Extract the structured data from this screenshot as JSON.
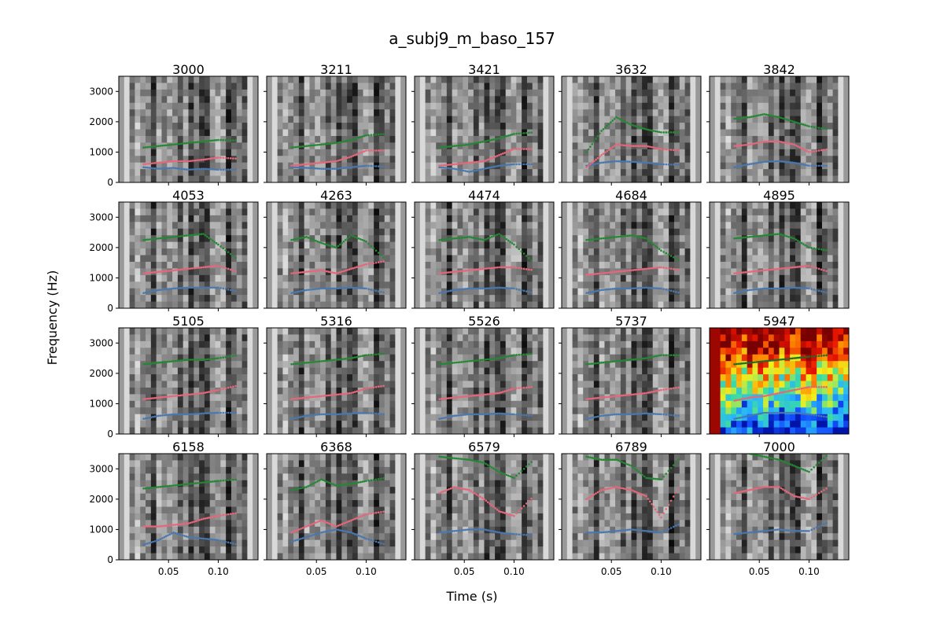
{
  "figure": {
    "title": "a_subj9_m_baso_157",
    "xlabel": "Time (s)",
    "ylabel": "Frequency (Hz)"
  },
  "chart_data": {
    "type": "scatter",
    "description_kind": "small-multiples spectrogram grid with formant tracks",
    "title": "a_subj9_m_baso_157",
    "xlabel": "Time (s)",
    "ylabel": "Frequency (Hz)",
    "xlim": [
      0.0,
      0.14
    ],
    "ylim": [
      0,
      3500
    ],
    "xticks": [
      0.05,
      0.1
    ],
    "xtick_labels": [
      "0.05",
      "0.10"
    ],
    "yticks": [
      0,
      1000,
      2000,
      3000
    ],
    "ytick_labels": [
      "0",
      "1000",
      "2000",
      "3000"
    ],
    "grid": false,
    "rows": 4,
    "cols": 5,
    "series_colors": {
      "F1": "#4878b0",
      "F2": "#e8667a",
      "F3": "#228833"
    },
    "highlight_colormap": "jet",
    "time_points": [
      0.025,
      0.04,
      0.055,
      0.07,
      0.085,
      0.1,
      0.12
    ],
    "panels": [
      {
        "label": "3000",
        "highlight": false,
        "F1": [
          500,
          450,
          480,
          420,
          450,
          420,
          430
        ],
        "F2": [
          600,
          650,
          700,
          700,
          750,
          820,
          780
        ],
        "F3": [
          1150,
          1200,
          1250,
          1300,
          1350,
          1400,
          1380
        ]
      },
      {
        "label": "3211",
        "highlight": false,
        "F1": [
          500,
          480,
          450,
          450,
          500,
          550,
          520
        ],
        "F2": [
          550,
          600,
          650,
          700,
          850,
          1050,
          1050
        ],
        "F3": [
          1150,
          1200,
          1250,
          1300,
          1400,
          1550,
          1600
        ]
      },
      {
        "label": "3421",
        "highlight": false,
        "F1": [
          500,
          450,
          350,
          450,
          550,
          600,
          600
        ],
        "F2": [
          550,
          600,
          650,
          700,
          900,
          1100,
          1100
        ],
        "F3": [
          1150,
          1200,
          1250,
          1350,
          1450,
          1600,
          1650
        ]
      },
      {
        "label": "3632",
        "highlight": false,
        "F1": [
          550,
          650,
          700,
          680,
          650,
          600,
          580
        ],
        "F2": [
          500,
          900,
          1250,
          1200,
          1200,
          1100,
          1050
        ],
        "F3": [
          1000,
          1700,
          2150,
          1900,
          1750,
          1650,
          1650
        ]
      },
      {
        "label": "3842",
        "highlight": false,
        "F1": [
          500,
          600,
          680,
          700,
          650,
          550,
          550
        ],
        "F2": [
          1200,
          1250,
          1350,
          1350,
          1250,
          1000,
          1100
        ],
        "F3": [
          2100,
          2150,
          2250,
          2150,
          2000,
          1850,
          1750
        ]
      },
      {
        "label": "4053",
        "highlight": false,
        "F1": [
          500,
          600,
          650,
          680,
          680,
          680,
          550
        ],
        "F2": [
          1150,
          1200,
          1250,
          1300,
          1350,
          1400,
          1200
        ],
        "F3": [
          2250,
          2300,
          2350,
          2400,
          2450,
          2100,
          1600
        ]
      },
      {
        "label": "4263",
        "highlight": false,
        "F1": [
          500,
          600,
          650,
          650,
          680,
          650,
          500
        ],
        "F2": [
          1150,
          1200,
          1250,
          1150,
          1300,
          1450,
          1550
        ],
        "F3": [
          2250,
          2350,
          2150,
          2000,
          2400,
          2200,
          1600
        ]
      },
      {
        "label": "4474",
        "highlight": false,
        "F1": [
          500,
          600,
          650,
          650,
          680,
          650,
          500
        ],
        "F2": [
          1150,
          1200,
          1250,
          1300,
          1350,
          1350,
          1250
        ],
        "F3": [
          2250,
          2300,
          2350,
          2250,
          2450,
          2100,
          1500
        ]
      },
      {
        "label": "4684",
        "highlight": false,
        "F1": [
          500,
          600,
          650,
          650,
          680,
          650,
          500
        ],
        "F2": [
          1100,
          1150,
          1200,
          1250,
          1300,
          1350,
          1250
        ],
        "F3": [
          2250,
          2300,
          2350,
          2400,
          2300,
          1900,
          1550
        ]
      },
      {
        "label": "4895",
        "highlight": false,
        "F1": [
          500,
          600,
          650,
          650,
          680,
          650,
          500
        ],
        "F2": [
          1150,
          1200,
          1250,
          1300,
          1350,
          1400,
          1200
        ],
        "F3": [
          2300,
          2350,
          2400,
          2450,
          2300,
          2000,
          1900
        ]
      },
      {
        "label": "5105",
        "highlight": false,
        "F1": [
          500,
          600,
          650,
          650,
          680,
          700,
          700
        ],
        "F2": [
          1150,
          1200,
          1250,
          1300,
          1350,
          1450,
          1600
        ],
        "F3": [
          2300,
          2350,
          2400,
          2450,
          2450,
          2500,
          2600
        ]
      },
      {
        "label": "5316",
        "highlight": false,
        "F1": [
          500,
          600,
          650,
          650,
          680,
          700,
          650
        ],
        "F2": [
          1150,
          1200,
          1250,
          1300,
          1350,
          1500,
          1600
        ],
        "F3": [
          2300,
          2350,
          2400,
          2450,
          2500,
          2600,
          2650
        ]
      },
      {
        "label": "5526",
        "highlight": false,
        "F1": [
          500,
          600,
          650,
          650,
          680,
          650,
          600
        ],
        "F2": [
          1150,
          1200,
          1250,
          1300,
          1350,
          1500,
          1550
        ],
        "F3": [
          2300,
          2350,
          2400,
          2450,
          2500,
          2600,
          2650
        ]
      },
      {
        "label": "5737",
        "highlight": false,
        "F1": [
          500,
          600,
          650,
          650,
          680,
          650,
          600
        ],
        "F2": [
          1150,
          1200,
          1250,
          1300,
          1350,
          1450,
          1550
        ],
        "F3": [
          2300,
          2350,
          2400,
          2450,
          2500,
          2600,
          2600
        ]
      },
      {
        "label": "5947",
        "highlight": true,
        "F1": [
          500,
          600,
          700,
          700,
          700,
          650,
          550
        ],
        "F2": [
          1100,
          1200,
          1250,
          1350,
          1450,
          1550,
          1550
        ],
        "F3": [
          2300,
          2350,
          2400,
          2450,
          2500,
          2550,
          2600
        ]
      },
      {
        "label": "6158",
        "highlight": false,
        "F1": [
          500,
          650,
          900,
          750,
          700,
          650,
          500
        ],
        "F2": [
          1100,
          1100,
          1150,
          1200,
          1350,
          1450,
          1550
        ],
        "F3": [
          2350,
          2400,
          2450,
          2500,
          2550,
          2600,
          2650
        ]
      },
      {
        "label": "6368",
        "highlight": false,
        "F1": [
          600,
          750,
          900,
          1000,
          900,
          700,
          500
        ],
        "F2": [
          900,
          1100,
          1300,
          1100,
          1300,
          1500,
          1600
        ],
        "F3": [
          2300,
          2400,
          2650,
          2450,
          2500,
          2600,
          2700
        ]
      },
      {
        "label": "6579",
        "highlight": false,
        "F1": [
          900,
          950,
          1000,
          1000,
          900,
          850,
          800
        ],
        "F2": [
          2200,
          2400,
          2300,
          2000,
          1600,
          1450,
          2100
        ],
        "F3": [
          3400,
          3350,
          3300,
          3200,
          2900,
          2700,
          3300
        ]
      },
      {
        "label": "6789",
        "highlight": false,
        "F1": [
          900,
          900,
          950,
          1000,
          950,
          900,
          1200
        ],
        "F2": [
          2000,
          2300,
          2400,
          2300,
          2100,
          1400,
          2500
        ],
        "F3": [
          3400,
          3300,
          3300,
          3100,
          2700,
          2650,
          3400
        ]
      },
      {
        "label": "7000",
        "highlight": false,
        "F1": [
          850,
          900,
          950,
          1000,
          950,
          950,
          1250
        ],
        "F2": [
          2200,
          2300,
          2400,
          2400,
          2100,
          2000,
          2400
        ],
        "F3": [
          3600,
          3500,
          3400,
          3300,
          3100,
          2900,
          3500
        ]
      }
    ]
  }
}
